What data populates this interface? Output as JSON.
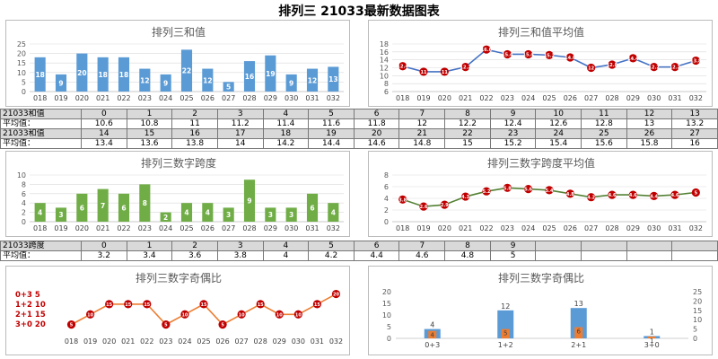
{
  "page_title": "排列三 21033最新数据图表",
  "colors": {
    "bar_blue": "#5b9bd5",
    "bar_green": "#70ad47",
    "line_blue": "#4472c4",
    "line_green": "#548235",
    "line_orange": "#ed7d31",
    "marker_red": "#c00000",
    "bar_orange": "#ed7d31"
  },
  "table1": {
    "rows": [
      {
        "label": "21033和值",
        "cells": [
          "0",
          "1",
          "2",
          "3",
          "4",
          "5",
          "6",
          "7",
          "8",
          "9",
          "10",
          "11",
          "12",
          "13"
        ]
      },
      {
        "label": "平均值：",
        "cells": [
          "10.6",
          "10.8",
          "11",
          "11.2",
          "11.4",
          "11.6",
          "11.8",
          "12",
          "12.2",
          "12.4",
          "12.6",
          "12.8",
          "13",
          "13.2"
        ]
      },
      {
        "label": "21033和值",
        "cells": [
          "14",
          "15",
          "16",
          "17",
          "18",
          "19",
          "20",
          "21",
          "22",
          "23",
          "24",
          "25",
          "26",
          "27"
        ]
      },
      {
        "label": "平均值：",
        "cells": [
          "13.4",
          "13.6",
          "13.8",
          "14",
          "14.2",
          "14.4",
          "14.6",
          "14.8",
          "15",
          "15.2",
          "15.4",
          "15.6",
          "15.8",
          "16"
        ]
      }
    ]
  },
  "table2": {
    "rows": [
      {
        "label": "21033跨度",
        "cells": [
          "0",
          "1",
          "2",
          "3",
          "4",
          "5",
          "6",
          "7",
          "8",
          "9",
          "",
          "",
          "",
          ""
        ]
      },
      {
        "label": "平均值：",
        "cells": [
          "3.2",
          "3.4",
          "3.6",
          "3.8",
          "4",
          "4.2",
          "4.4",
          "4.6",
          "4.8",
          "5",
          "",
          "",
          "",
          ""
        ]
      }
    ]
  },
  "chart_data": [
    {
      "id": "sum_bar",
      "type": "bar",
      "title": "排列三和值",
      "categories": [
        "018",
        "019",
        "020",
        "021",
        "022",
        "023",
        "024",
        "025",
        "026",
        "027",
        "028",
        "029",
        "030",
        "031",
        "032"
      ],
      "values": [
        18,
        9,
        20,
        18,
        18,
        12,
        9,
        22,
        12,
        5,
        16,
        19,
        9,
        12,
        13
      ],
      "ylim": [
        0,
        25
      ],
      "yticks": [
        0,
        5,
        10,
        15,
        20,
        25
      ],
      "grid": true
    },
    {
      "id": "sum_avg_line",
      "type": "line",
      "title": "排列三和值平均值",
      "categories": [
        "018",
        "019",
        "020",
        "021",
        "022",
        "023",
        "024",
        "025",
        "026",
        "027",
        "028",
        "029",
        "030",
        "031",
        "032"
      ],
      "values": [
        12.4,
        11,
        11,
        12.2,
        16.6,
        15.4,
        15.4,
        15.2,
        14.6,
        12,
        12.8,
        14.4,
        12.2,
        12.2,
        13.8
      ],
      "ylim": [
        6,
        18
      ],
      "yticks": [
        6,
        8,
        10,
        12,
        14,
        16,
        18
      ],
      "grid": true
    },
    {
      "id": "span_bar",
      "type": "bar",
      "title": "排列三数字跨度",
      "categories": [
        "018",
        "019",
        "020",
        "021",
        "022",
        "023",
        "024",
        "025",
        "026",
        "027",
        "028",
        "029",
        "030",
        "031",
        "032"
      ],
      "values": [
        4,
        3,
        6,
        7,
        6,
        8,
        2,
        4,
        4,
        3,
        9,
        3,
        3,
        6,
        4
      ],
      "ylim": [
        0,
        10
      ],
      "yticks": [
        0,
        2,
        4,
        6,
        8,
        10
      ],
      "grid": true
    },
    {
      "id": "span_avg_line",
      "type": "line",
      "title": "排列三数字跨度平均值",
      "categories": [
        "018",
        "019",
        "020",
        "021",
        "022",
        "023",
        "024",
        "025",
        "026",
        "027",
        "028",
        "029",
        "030",
        "031",
        "032"
      ],
      "values": [
        3.8,
        2.6,
        2.9,
        4.3,
        5.2,
        5.8,
        5.6,
        5.4,
        4.8,
        4.2,
        4.6,
        4.6,
        4.4,
        4.6,
        5
      ],
      "ylim": [
        0,
        8
      ],
      "yticks": [
        0,
        2,
        4,
        6,
        8
      ],
      "grid": true
    },
    {
      "id": "odd_even_line",
      "type": "line",
      "title": "排列三数字奇偶比",
      "legend_text": [
        "0+3  5",
        "1+2  10",
        "2+1  15",
        "3+0  20"
      ],
      "categories": [
        "018",
        "019",
        "020",
        "021",
        "022",
        "023",
        "024",
        "025",
        "026",
        "027",
        "028",
        "029",
        "030",
        "031",
        "032"
      ],
      "values": [
        5,
        10,
        15,
        15,
        15,
        5,
        10,
        15,
        5,
        10,
        15,
        10,
        10,
        15,
        20
      ],
      "ylim": [
        0,
        22
      ],
      "grid": false
    },
    {
      "id": "odd_even_bar",
      "type": "bar",
      "title": "排列三数字奇偶比",
      "categories": [
        "0+3",
        "1+2",
        "2+1",
        "3+0"
      ],
      "series": [
        {
          "values": [
            4,
            12,
            13,
            1
          ]
        },
        {
          "values": [
            4,
            5,
            6,
            1
          ]
        }
      ],
      "labels_blue": [
        "4",
        "12",
        "13",
        "1"
      ],
      "labels_orange": [
        "4",
        "5",
        "6",
        "1"
      ],
      "ylim_left": [
        0,
        20
      ],
      "yticks_left": [
        0,
        5,
        10,
        15,
        20
      ],
      "ylim_right": [
        0,
        25
      ],
      "yticks_right": [
        0,
        5,
        10,
        15,
        20,
        25
      ]
    }
  ]
}
